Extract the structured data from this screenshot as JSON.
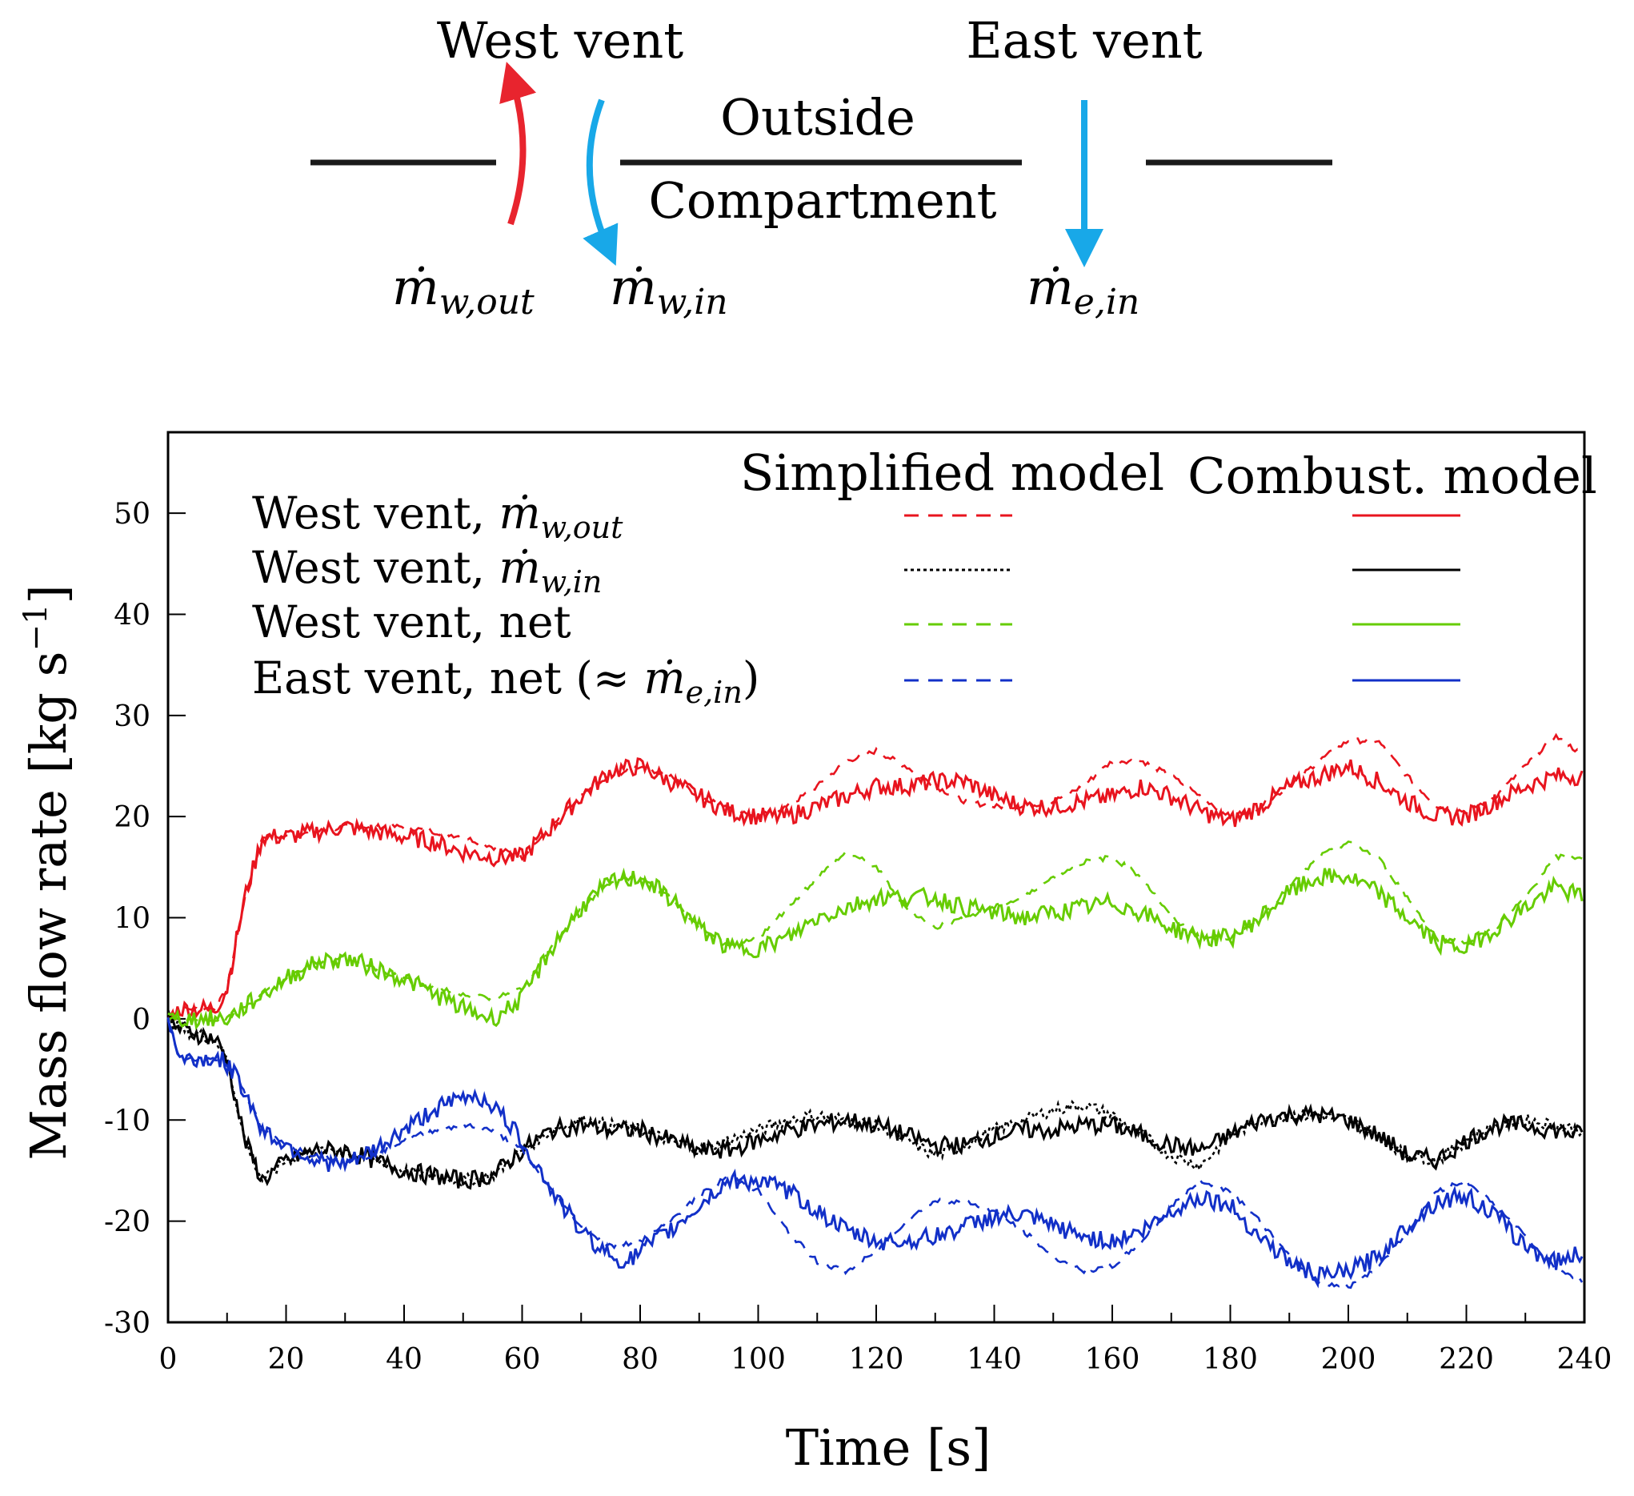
{
  "diagram": {
    "west_vent_label": "West vent",
    "east_vent_label": "East vent",
    "outside_label": "Outside",
    "compartment_label": "Compartment",
    "w_out_sub": "w,out",
    "w_in_sub": "w,in",
    "e_in_sub": "e,in",
    "m_symbol": "ṁ",
    "out_arrow_color": "#e8242e",
    "in_arrow_color": "#18a8e8"
  },
  "legend": {
    "header_simplified": "Simplified model",
    "header_combust": "Combust. model",
    "entries": [
      {
        "prefix": "West vent, ",
        "math": "ṁ",
        "sub": "w,out",
        "suffix": "",
        "color": "#e8141e",
        "simplified_style": "dashed"
      },
      {
        "prefix": "West vent, ",
        "math": "ṁ",
        "sub": "w,in",
        "suffix": "",
        "color": "#000000",
        "simplified_style": "dotted"
      },
      {
        "prefix": "West vent, net",
        "math": "",
        "sub": "",
        "suffix": "",
        "color": "#66cc00",
        "simplified_style": "dashed"
      },
      {
        "prefix": "East vent, net (≈ ",
        "math": "ṁ",
        "sub": "e,in",
        "suffix": ")",
        "color": "#1230c8",
        "simplified_style": "dashed"
      }
    ]
  },
  "chart_data": {
    "type": "line",
    "xlabel": "Time [s]",
    "ylabel": "Mass flow rate [kg s",
    "ylabel_exp": "−1",
    "ylabel_close": "]",
    "xlim": [
      0,
      240
    ],
    "ylim": [
      -30,
      58
    ],
    "xticks": [
      0,
      20,
      40,
      60,
      80,
      100,
      120,
      140,
      160,
      180,
      200,
      220,
      240
    ],
    "yticks": [
      -30,
      -20,
      -10,
      0,
      10,
      20,
      30,
      40,
      50
    ],
    "series": [
      {
        "name": "West vent, ṁw,out (Simplified model)",
        "color": "#e8141e",
        "style": "dashed",
        "x": [
          0,
          2,
          5,
          8,
          10,
          13,
          16,
          20,
          25,
          30,
          35,
          40,
          45,
          50,
          55,
          60,
          65,
          70,
          75,
          80,
          85,
          90,
          95,
          100,
          105,
          110,
          115,
          120,
          125,
          130,
          135,
          140,
          145,
          150,
          155,
          160,
          165,
          170,
          175,
          180,
          185,
          190,
          195,
          200,
          205,
          210,
          215,
          220,
          225,
          230,
          235,
          240
        ],
        "y": [
          0,
          1,
          1,
          1,
          3,
          12,
          18,
          18,
          18.5,
          19,
          19,
          19,
          18.5,
          18,
          17,
          16,
          19,
          22,
          24,
          25,
          24,
          22,
          21,
          20,
          21,
          23,
          25.5,
          26.5,
          25,
          23,
          21.5,
          21,
          21,
          21.5,
          23,
          25.5,
          25.5,
          24,
          22,
          20,
          21,
          23,
          25.5,
          27.5,
          27.5,
          24,
          21,
          20.5,
          22,
          25,
          28,
          26
        ]
      },
      {
        "name": "West vent, ṁw,out (Combust. model)",
        "color": "#e8141e",
        "style": "solid",
        "x": [
          0,
          2,
          5,
          8,
          10,
          13,
          16,
          20,
          25,
          30,
          35,
          40,
          45,
          50,
          55,
          60,
          65,
          70,
          75,
          80,
          85,
          90,
          95,
          100,
          105,
          110,
          115,
          120,
          125,
          130,
          135,
          140,
          145,
          150,
          155,
          160,
          165,
          170,
          175,
          180,
          185,
          190,
          195,
          200,
          205,
          210,
          215,
          220,
          225,
          230,
          235,
          240
        ],
        "y": [
          0,
          1,
          1,
          1,
          3,
          12,
          18,
          18,
          18.5,
          19,
          18.5,
          18,
          17.5,
          16.5,
          16,
          16,
          19,
          22,
          24.5,
          25,
          23.5,
          22,
          20.5,
          20,
          20,
          21,
          22,
          23,
          23,
          23.5,
          23.5,
          22,
          21,
          21,
          21.5,
          22,
          23,
          22,
          20.5,
          19.5,
          21,
          23,
          24,
          25,
          23.5,
          21.5,
          20,
          20,
          21.5,
          23,
          24,
          24
        ]
      },
      {
        "name": "West vent, ṁw,in (Simplified model)",
        "color": "#000000",
        "style": "dotted",
        "x": [
          0,
          2,
          5,
          8,
          10,
          13,
          16,
          20,
          25,
          30,
          35,
          40,
          45,
          50,
          55,
          60,
          65,
          70,
          75,
          80,
          85,
          90,
          95,
          100,
          105,
          110,
          115,
          120,
          125,
          130,
          135,
          140,
          145,
          150,
          155,
          160,
          165,
          170,
          175,
          180,
          185,
          190,
          195,
          200,
          205,
          210,
          215,
          220,
          225,
          230,
          235,
          240
        ],
        "y": [
          0,
          -1,
          -1.5,
          -2,
          -4,
          -12,
          -16,
          -14,
          -13,
          -13,
          -14,
          -15,
          -15.5,
          -16,
          -15.5,
          -13,
          -11,
          -10,
          -10.5,
          -11,
          -12,
          -13,
          -12,
          -11,
          -10,
          -9.5,
          -10,
          -10.5,
          -12,
          -13.5,
          -12.5,
          -11,
          -10,
          -9,
          -8.5,
          -9.5,
          -11.5,
          -13.5,
          -14.5,
          -11.5,
          -10,
          -9.5,
          -9.5,
          -10,
          -11.5,
          -13.5,
          -14,
          -12,
          -10.5,
          -10,
          -10.5,
          -11
        ]
      },
      {
        "name": "West vent, ṁw,in (Combust. model)",
        "color": "#000000",
        "style": "solid",
        "x": [
          0,
          2,
          5,
          8,
          10,
          13,
          16,
          20,
          25,
          30,
          35,
          40,
          45,
          50,
          55,
          60,
          65,
          70,
          75,
          80,
          85,
          90,
          95,
          100,
          105,
          110,
          115,
          120,
          125,
          130,
          135,
          140,
          145,
          150,
          155,
          160,
          165,
          170,
          175,
          180,
          185,
          190,
          195,
          200,
          205,
          210,
          215,
          220,
          225,
          230,
          235,
          240
        ],
        "y": [
          0,
          -1,
          -1.5,
          -2,
          -4,
          -12,
          -16,
          -14,
          -13,
          -13,
          -14,
          -15,
          -15.5,
          -16,
          -15.5,
          -13,
          -11,
          -10.5,
          -11,
          -11,
          -12,
          -13,
          -13,
          -12,
          -11,
          -10.5,
          -10,
          -10.5,
          -11.5,
          -12.5,
          -12.5,
          -11.5,
          -11,
          -11,
          -10.5,
          -10.5,
          -11.5,
          -12.5,
          -13,
          -11.5,
          -10,
          -9.5,
          -9.5,
          -10,
          -11.5,
          -13.5,
          -14,
          -12,
          -10.5,
          -10.5,
          -11,
          -11.5
        ]
      },
      {
        "name": "West vent, net (Simplified model)",
        "color": "#66cc00",
        "style": "dashed",
        "x": [
          0,
          3,
          6,
          10,
          15,
          20,
          25,
          30,
          35,
          40,
          45,
          50,
          55,
          60,
          65,
          70,
          75,
          80,
          85,
          90,
          95,
          100,
          105,
          110,
          115,
          120,
          125,
          130,
          135,
          140,
          145,
          150,
          155,
          160,
          165,
          170,
          175,
          180,
          185,
          190,
          195,
          200,
          205,
          210,
          215,
          220,
          225,
          230,
          235,
          240
        ],
        "y": [
          0,
          0,
          0,
          0,
          2,
          4,
          5.5,
          6,
          5,
          4,
          3,
          2.5,
          2,
          3,
          7,
          11,
          13.5,
          14,
          12,
          9,
          7,
          8,
          11,
          14,
          16.5,
          15,
          11,
          9,
          10,
          11,
          12,
          14,
          15.5,
          16,
          14,
          10,
          8,
          8,
          10,
          13,
          16,
          17.5,
          16,
          12,
          8,
          7.5,
          9,
          12,
          16,
          16
        ]
      },
      {
        "name": "West vent, net (Combust. model)",
        "color": "#66cc00",
        "style": "solid",
        "x": [
          0,
          3,
          6,
          10,
          15,
          20,
          25,
          30,
          35,
          40,
          45,
          50,
          55,
          60,
          65,
          70,
          75,
          80,
          85,
          90,
          95,
          100,
          105,
          110,
          115,
          120,
          125,
          130,
          135,
          140,
          145,
          150,
          155,
          160,
          165,
          170,
          175,
          180,
          185,
          190,
          195,
          200,
          205,
          210,
          215,
          220,
          225,
          230,
          235,
          240
        ],
        "y": [
          0,
          0,
          0,
          0,
          2,
          4,
          5.5,
          6,
          5,
          4,
          2.5,
          1,
          0,
          2,
          7,
          11,
          13.5,
          14,
          12,
          9,
          7,
          7,
          8,
          10,
          11,
          12,
          12,
          12,
          11,
          10.5,
          10,
          10.5,
          11,
          11.5,
          10.5,
          9,
          8,
          8,
          10,
          12.5,
          14,
          14,
          12.5,
          10,
          7.5,
          7,
          9,
          11,
          13,
          12
        ]
      },
      {
        "name": "East vent, net (Simplified model)",
        "color": "#1230c8",
        "style": "dashed",
        "x": [
          0,
          2,
          5,
          9,
          12,
          16,
          20,
          25,
          30,
          35,
          40,
          45,
          50,
          55,
          60,
          65,
          70,
          75,
          80,
          85,
          90,
          95,
          100,
          105,
          110,
          115,
          120,
          125,
          130,
          135,
          140,
          145,
          150,
          155,
          160,
          165,
          170,
          175,
          180,
          185,
          190,
          195,
          200,
          205,
          210,
          215,
          220,
          225,
          230,
          235,
          240
        ],
        "y": [
          0,
          -4,
          -4,
          -4,
          -6,
          -11,
          -12.5,
          -13.5,
          -14,
          -13.5,
          -12,
          -11,
          -10.5,
          -11,
          -13,
          -17,
          -20.5,
          -22.5,
          -22,
          -20,
          -17.5,
          -15.5,
          -17,
          -21,
          -24,
          -25,
          -23,
          -20,
          -18,
          -18,
          -19,
          -21,
          -23.5,
          -25,
          -24.5,
          -22,
          -18.5,
          -16,
          -17,
          -20,
          -23.5,
          -26,
          -26.5,
          -24.5,
          -21,
          -17,
          -16,
          -18.5,
          -21.5,
          -24.5,
          -26
        ]
      },
      {
        "name": "East vent, net (Combust. model)",
        "color": "#1230c8",
        "style": "solid",
        "x": [
          0,
          2,
          5,
          9,
          12,
          16,
          20,
          25,
          30,
          35,
          40,
          45,
          50,
          52,
          55,
          60,
          65,
          70,
          75,
          78,
          80,
          85,
          90,
          95,
          100,
          105,
          110,
          115,
          120,
          125,
          130,
          135,
          140,
          145,
          150,
          155,
          160,
          165,
          170,
          175,
          180,
          185,
          190,
          195,
          200,
          205,
          210,
          215,
          220,
          225,
          230,
          235,
          240
        ],
        "y": [
          0,
          -4,
          -4,
          -4,
          -6,
          -11,
          -12.5,
          -14,
          -14.5,
          -13,
          -11,
          -9,
          -7.8,
          -7.5,
          -8.5,
          -12,
          -17,
          -21,
          -23.5,
          -24,
          -23,
          -21,
          -18.5,
          -16,
          -16,
          -17,
          -19,
          -21,
          -22,
          -22,
          -21.5,
          -20.5,
          -19.5,
          -19.5,
          -20.5,
          -21.5,
          -22,
          -21,
          -19,
          -17.5,
          -18.5,
          -21.5,
          -24,
          -25.5,
          -25,
          -23.5,
          -20.5,
          -18,
          -17.5,
          -19.5,
          -22.5,
          -24,
          -23
        ]
      }
    ]
  }
}
